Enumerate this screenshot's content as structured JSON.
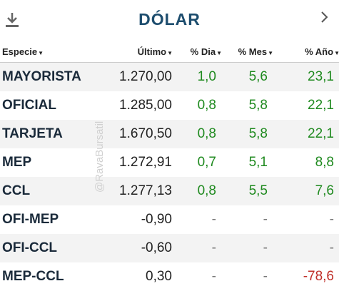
{
  "header": {
    "title": "DÓLAR"
  },
  "table": {
    "columns": [
      "Especie",
      "Último",
      "% Dia",
      "% Mes",
      "% Año"
    ],
    "rows": [
      [
        "MAYORISTA",
        "1.270,00",
        "1,0",
        "5,6",
        "23,1"
      ],
      [
        "OFICIAL",
        "1.285,00",
        "0,8",
        "5,8",
        "22,1"
      ],
      [
        "TARJETA",
        "1.670,50",
        "0,8",
        "5,8",
        "22,1"
      ],
      [
        "MEP",
        "1.272,91",
        "0,7",
        "5,1",
        "8,8"
      ],
      [
        "CCL",
        "1.277,13",
        "0,8",
        "5,5",
        "7,6"
      ],
      [
        "OFI-MEP",
        "-0,90",
        "-",
        "-",
        "-"
      ],
      [
        "OFI-CCL",
        "-0,60",
        "-",
        "-",
        "-"
      ],
      [
        "MEP-CCL",
        "0,30",
        "-",
        "-",
        "-78,6"
      ]
    ]
  },
  "watermark": "@RavaBursatil"
}
